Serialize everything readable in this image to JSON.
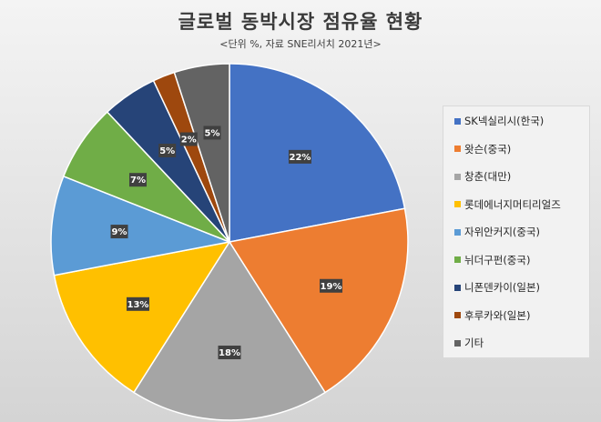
{
  "chart_data": {
    "type": "pie",
    "title": "글로벌 동박시장 점유율 현황",
    "subtitle": "<단위 %, 자료 SNE리서치 2021년>",
    "legend_position": "right",
    "slices": [
      {
        "name": "SK넥실리시(한국)",
        "value": 22,
        "label": "22%",
        "color": "#4472c4"
      },
      {
        "name": "왓슨(중국)",
        "value": 19,
        "label": "19%",
        "color": "#ed7d31"
      },
      {
        "name": "창춘(대만)",
        "value": 18,
        "label": "18%",
        "color": "#a5a5a5"
      },
      {
        "name": "롯데에너지머티리얼즈",
        "value": 13,
        "label": "13%",
        "color": "#ffc000"
      },
      {
        "name": "자위안커지(중국)",
        "value": 9,
        "label": "9%",
        "color": "#5b9bd5"
      },
      {
        "name": "뉘더구펀(중국)",
        "value": 7,
        "label": "7%",
        "color": "#70ad47"
      },
      {
        "name": "니폰덴카이(일본)",
        "value": 5,
        "label": "5%",
        "color": "#264478"
      },
      {
        "name": "후루카와(일본)",
        "value": 2,
        "label": "2%",
        "color": "#9e480e"
      },
      {
        "name": "기타",
        "value": 5,
        "label": "5%",
        "color": "#636363"
      }
    ]
  }
}
